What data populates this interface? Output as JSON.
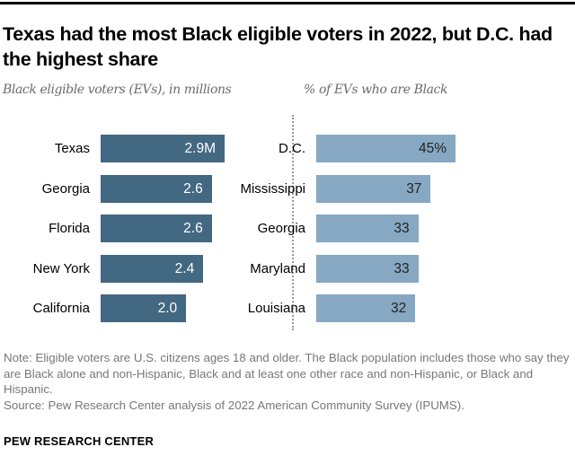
{
  "title": "Texas had the most Black eligible voters in 2022, but D.C. had the highest share",
  "note": "Note: Eligible voters are U.S. citizens ages 18 and older. The Black population includes those who say they are Black alone and non-Hispanic, Black and at least one other race and non-Hispanic, or Black and Hispanic.",
  "source": "Source: Pew Research Center analysis of 2022 American Community Survey (IPUMS).",
  "brand": "PEW RESEARCH CENTER",
  "colors": {
    "left_bar": "#426882",
    "right_bar": "#86a8c3"
  },
  "chart_data": [
    {
      "type": "bar",
      "orientation": "horizontal",
      "title": "Black eligible voters (EVs), in millions",
      "categories": [
        "Texas",
        "Georgia",
        "Florida",
        "New York",
        "California"
      ],
      "values": [
        2.9,
        2.6,
        2.6,
        2.4,
        2.0
      ],
      "labels": [
        "2.9M",
        "2.6",
        "2.6",
        "2.4",
        "2.0"
      ],
      "xlim": [
        0,
        2.9
      ],
      "grid": false
    },
    {
      "type": "bar",
      "orientation": "horizontal",
      "title": "% of EVs who are Black",
      "categories": [
        "D.C.",
        "Mississippi",
        "Georgia",
        "Maryland",
        "Louisiana"
      ],
      "values": [
        45,
        37,
        33,
        33,
        32
      ],
      "labels": [
        "45%",
        "37",
        "33",
        "33",
        "32"
      ],
      "xlim": [
        0,
        45
      ],
      "grid": false
    }
  ]
}
